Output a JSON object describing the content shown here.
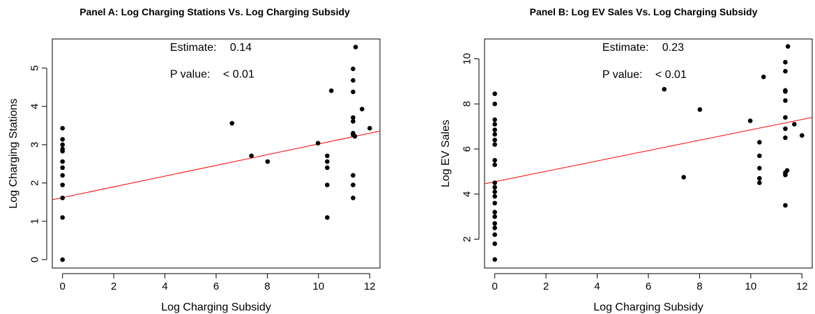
{
  "chart_data": [
    {
      "type": "scatter",
      "title": "Panel A: Log Charging Stations Vs. Log Charging Subsidy",
      "xlabel": "Log Charging Subsidy",
      "ylabel": "Log Charging Stations",
      "xlim": [
        -0.4,
        12.4
      ],
      "ylim": [
        -0.22,
        5.76
      ],
      "xticks": [
        0,
        2,
        4,
        6,
        8,
        10,
        12
      ],
      "yticks": [
        0,
        1,
        2,
        3,
        4,
        5
      ],
      "grid": false,
      "point_color": "#000000",
      "fit_color": "#ff0000",
      "fit_line": {
        "intercept": 1.62,
        "slope": 0.14
      },
      "annotations": [
        {
          "label": "Estimate:",
          "value": "0.14",
          "anchor_x": 4.2,
          "anchor_y": 5.45
        },
        {
          "label": "P value:",
          "value": "< 0.01",
          "anchor_x": 4.2,
          "anchor_y": 4.75
        }
      ],
      "points": [
        {
          "x": 0,
          "y": 3.43
        },
        {
          "x": 0,
          "y": 3.14
        },
        {
          "x": 0,
          "y": 3.0
        },
        {
          "x": 0,
          "y": 2.89
        },
        {
          "x": 0,
          "y": 2.83
        },
        {
          "x": 0,
          "y": 2.56
        },
        {
          "x": 0,
          "y": 2.4
        },
        {
          "x": 0,
          "y": 2.2
        },
        {
          "x": 0,
          "y": 1.95
        },
        {
          "x": 0,
          "y": 1.61
        },
        {
          "x": 0,
          "y": 1.1
        },
        {
          "x": 0,
          "y": 0.0
        },
        {
          "x": 6.62,
          "y": 3.56
        },
        {
          "x": 7.38,
          "y": 2.71
        },
        {
          "x": 8.01,
          "y": 2.56
        },
        {
          "x": 9.98,
          "y": 3.04
        },
        {
          "x": 10.34,
          "y": 2.71
        },
        {
          "x": 10.34,
          "y": 2.56
        },
        {
          "x": 10.34,
          "y": 2.4
        },
        {
          "x": 10.34,
          "y": 1.95
        },
        {
          "x": 10.34,
          "y": 1.1
        },
        {
          "x": 10.5,
          "y": 4.41
        },
        {
          "x": 11.35,
          "y": 4.98
        },
        {
          "x": 11.35,
          "y": 4.68
        },
        {
          "x": 11.35,
          "y": 4.38
        },
        {
          "x": 11.35,
          "y": 3.71
        },
        {
          "x": 11.35,
          "y": 3.61
        },
        {
          "x": 11.35,
          "y": 3.3
        },
        {
          "x": 11.35,
          "y": 3.26
        },
        {
          "x": 11.35,
          "y": 2.2
        },
        {
          "x": 11.35,
          "y": 1.95
        },
        {
          "x": 11.35,
          "y": 1.61
        },
        {
          "x": 11.42,
          "y": 3.22
        },
        {
          "x": 11.45,
          "y": 5.55
        },
        {
          "x": 11.7,
          "y": 3.93
        },
        {
          "x": 12.0,
          "y": 3.43
        }
      ]
    },
    {
      "type": "scatter",
      "title": "Panel B: Log EV Sales Vs. Log Charging Subsidy",
      "xlabel": "Log Charging Subsidy",
      "ylabel": "Log EV Sales",
      "xlim": [
        -0.4,
        12.4
      ],
      "ylim": [
        0.72,
        10.88
      ],
      "xticks": [
        0,
        2,
        4,
        6,
        8,
        10,
        12
      ],
      "yticks": [
        2,
        4,
        6,
        8,
        10
      ],
      "grid": false,
      "point_color": "#000000",
      "fit_color": "#ff0000",
      "fit_line": {
        "intercept": 4.55,
        "slope": 0.23
      },
      "annotations": [
        {
          "label": "Estimate:",
          "value": "0.23",
          "anchor_x": 4.2,
          "anchor_y": 10.35
        },
        {
          "label": "P value:",
          "value": "< 0.01",
          "anchor_x": 4.2,
          "anchor_y": 9.15
        }
      ],
      "points": [
        {
          "x": 0,
          "y": 8.45
        },
        {
          "x": 0,
          "y": 8.0
        },
        {
          "x": 0,
          "y": 7.3
        },
        {
          "x": 0,
          "y": 7.1
        },
        {
          "x": 0,
          "y": 6.85
        },
        {
          "x": 0,
          "y": 6.65
        },
        {
          "x": 0,
          "y": 6.4
        },
        {
          "x": 0,
          "y": 6.2
        },
        {
          "x": 0,
          "y": 5.5
        },
        {
          "x": 0,
          "y": 5.3
        },
        {
          "x": 0,
          "y": 4.5
        },
        {
          "x": 0,
          "y": 4.3
        },
        {
          "x": 0,
          "y": 4.1
        },
        {
          "x": 0,
          "y": 3.9
        },
        {
          "x": 0,
          "y": 3.6
        },
        {
          "x": 0,
          "y": 3.2
        },
        {
          "x": 0,
          "y": 3.0
        },
        {
          "x": 0,
          "y": 2.7
        },
        {
          "x": 0,
          "y": 2.5
        },
        {
          "x": 0,
          "y": 2.2
        },
        {
          "x": 0,
          "y": 1.8
        },
        {
          "x": 0,
          "y": 1.1
        },
        {
          "x": 6.62,
          "y": 8.65
        },
        {
          "x": 7.38,
          "y": 4.75
        },
        {
          "x": 8.01,
          "y": 7.75
        },
        {
          "x": 9.98,
          "y": 7.25
        },
        {
          "x": 10.34,
          "y": 6.3
        },
        {
          "x": 10.34,
          "y": 5.7
        },
        {
          "x": 10.34,
          "y": 5.15
        },
        {
          "x": 10.34,
          "y": 4.7
        },
        {
          "x": 10.34,
          "y": 4.5
        },
        {
          "x": 10.5,
          "y": 9.2
        },
        {
          "x": 11.35,
          "y": 9.85
        },
        {
          "x": 11.35,
          "y": 9.45
        },
        {
          "x": 11.35,
          "y": 8.6
        },
        {
          "x": 11.35,
          "y": 8.55
        },
        {
          "x": 11.35,
          "y": 8.15
        },
        {
          "x": 11.35,
          "y": 7.4
        },
        {
          "x": 11.35,
          "y": 6.9
        },
        {
          "x": 11.35,
          "y": 6.5
        },
        {
          "x": 11.35,
          "y": 4.95
        },
        {
          "x": 11.35,
          "y": 4.85
        },
        {
          "x": 11.35,
          "y": 3.5
        },
        {
          "x": 11.42,
          "y": 5.05
        },
        {
          "x": 11.45,
          "y": 10.55
        },
        {
          "x": 11.7,
          "y": 7.1
        },
        {
          "x": 12.0,
          "y": 6.6
        }
      ]
    }
  ]
}
